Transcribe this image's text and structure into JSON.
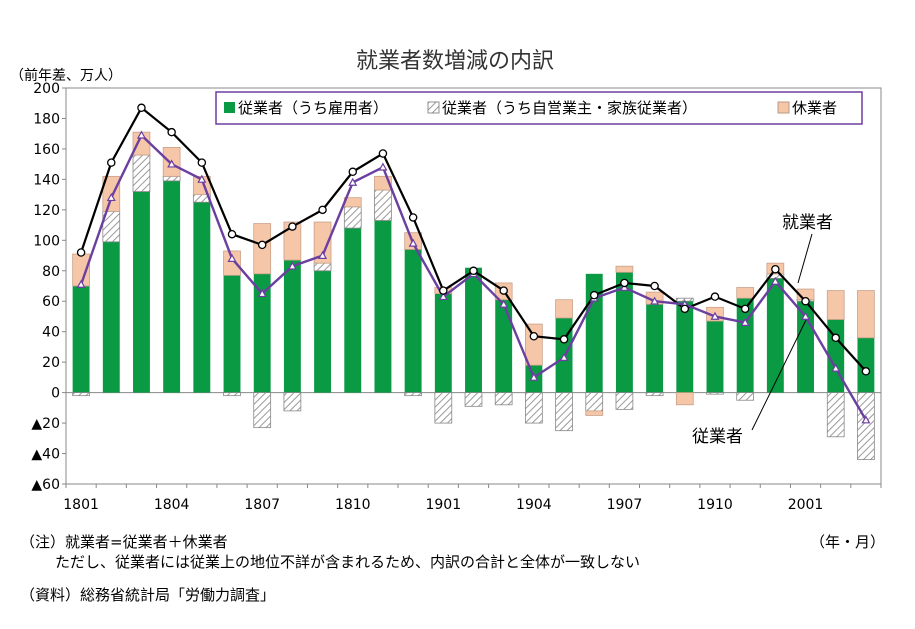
{
  "chart_data": {
    "type": "bar",
    "title": "就業者数増減の内訳",
    "ylabel": "（前年差、万人）",
    "xlabel": "（年・月）",
    "ylim": [
      -60,
      200
    ],
    "ytick_values": [
      -60,
      -40,
      -20,
      0,
      20,
      40,
      60,
      80,
      100,
      120,
      140,
      160,
      180,
      200
    ],
    "ytick_labels": [
      "▲60",
      "▲40",
      "▲20",
      "0",
      "20",
      "40",
      "60",
      "80",
      "100",
      "120",
      "140",
      "160",
      "180",
      "200"
    ],
    "categories": [
      "1801",
      "1802",
      "1803",
      "1804",
      "1805",
      "1806",
      "1807",
      "1808",
      "1809",
      "1810",
      "1811",
      "1812",
      "1901",
      "1902",
      "1903",
      "1904",
      "1905",
      "1906",
      "1907",
      "1908",
      "1909",
      "1910",
      "1911",
      "1912",
      "2001",
      "2002",
      "2003"
    ],
    "xtick_labels": [
      {
        "index": 0,
        "label": "1801"
      },
      {
        "index": 3,
        "label": "1804"
      },
      {
        "index": 6,
        "label": "1807"
      },
      {
        "index": 9,
        "label": "1810"
      },
      {
        "index": 12,
        "label": "1901"
      },
      {
        "index": 15,
        "label": "1904"
      },
      {
        "index": 18,
        "label": "1907"
      },
      {
        "index": 21,
        "label": "1910"
      },
      {
        "index": 24,
        "label": "2001"
      }
    ],
    "legend_position": "top",
    "grid": false,
    "series": [
      {
        "name": "従業者（うち雇用者）",
        "kind": "bar",
        "color": "#0a9a44",
        "values": [
          70,
          99,
          132,
          139,
          125,
          77,
          78,
          87,
          80,
          108,
          113,
          94,
          65,
          82,
          61,
          18,
          49,
          78,
          79,
          58,
          60,
          47,
          62,
          75,
          60,
          48,
          36
        ]
      },
      {
        "name": "従業者（うち自営業主・家族従業者）",
        "kind": "bar",
        "color": "#b0b0b0",
        "pattern": "hatch",
        "values": [
          -2,
          20,
          24,
          3,
          5,
          -2,
          -23,
          -12,
          5,
          14,
          20,
          -2,
          -20,
          -9,
          -8,
          -20,
          -25,
          -12,
          -11,
          -2,
          2,
          -1,
          -5,
          3,
          1,
          -29,
          -44
        ]
      },
      {
        "name": "休業者",
        "kind": "bar",
        "color": "#f6c6a8",
        "values": [
          21,
          23,
          15,
          19,
          12,
          16,
          33,
          25,
          27,
          6,
          9,
          11,
          4,
          0,
          11,
          27,
          12,
          -3,
          4,
          8,
          -8,
          9,
          7,
          7,
          7,
          19,
          31
        ]
      },
      {
        "name": "就業者",
        "kind": "line",
        "color": "#000000",
        "values": [
          92,
          151,
          187,
          171,
          151,
          104,
          97,
          109,
          120,
          145,
          157,
          115,
          67,
          80,
          67,
          37,
          35,
          64,
          72,
          70,
          55,
          63,
          55,
          81,
          60,
          36,
          14
        ]
      },
      {
        "name": "従業者",
        "kind": "line",
        "color": "#6b3fa0",
        "values": [
          71,
          128,
          169,
          150,
          140,
          88,
          65,
          83,
          90,
          138,
          148,
          98,
          63,
          78,
          58,
          10,
          23,
          62,
          69,
          60,
          58,
          50,
          46,
          73,
          50,
          16,
          -18
        ]
      }
    ],
    "annotations": [
      {
        "text": "就業者"
      },
      {
        "text": "従業者"
      }
    ]
  },
  "notes": {
    "note1": "（注）就業者=従業者＋休業者",
    "note2": "ただし、従業者には従業上の地位不詳が含まれるため、内訳の合計と全体が一致しない",
    "source": "（資料）総務省統計局「労働力調査」"
  },
  "colors": {
    "employed_bar": "#0a9a44",
    "self_employed_hatch": "#b0b0b0",
    "on_leave_bar": "#f6c6a8",
    "total_line": "#000000",
    "workers_line": "#6b3fa0",
    "legend_border": "#6b3fa0"
  }
}
